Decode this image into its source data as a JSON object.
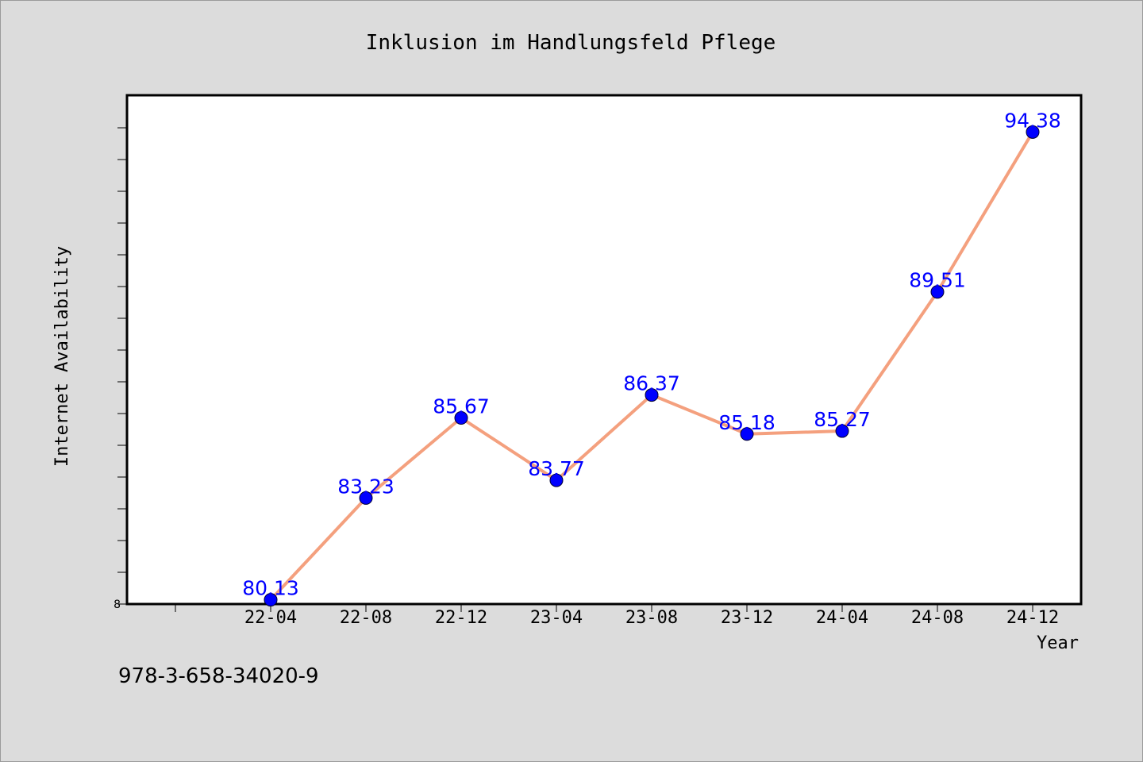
{
  "chart_data": {
    "type": "line",
    "title": "Inklusion im Handlungsfeld Pflege",
    "xlabel": "Year",
    "ylabel": "Internet Availability",
    "categories": [
      "22-04",
      "22-08",
      "22-12",
      "23-04",
      "23-08",
      "23-12",
      "24-04",
      "24-08",
      "24-12"
    ],
    "series": [
      {
        "values": [
          80.13,
          83.23,
          85.67,
          83.77,
          86.37,
          85.18,
          85.27,
          89.51,
          94.38
        ],
        "data_labels": [
          "80.13",
          "83.23",
          "85.67",
          "83.77",
          "86.37",
          "85.18",
          "85.27",
          "89.51",
          "94.38"
        ],
        "line_color": "#f4a07e",
        "marker_color": "#0000ff"
      }
    ],
    "ylim": [
      80,
      95.5
    ],
    "y_tick_labels": [
      "8"
    ],
    "grid": false,
    "legend": "none",
    "colors": {
      "background": "#dcdcdc",
      "plot_background": "#ffffff",
      "data_label": "#0000ff"
    }
  },
  "footer": {
    "isbn": "978-3-658-34020-9"
  }
}
